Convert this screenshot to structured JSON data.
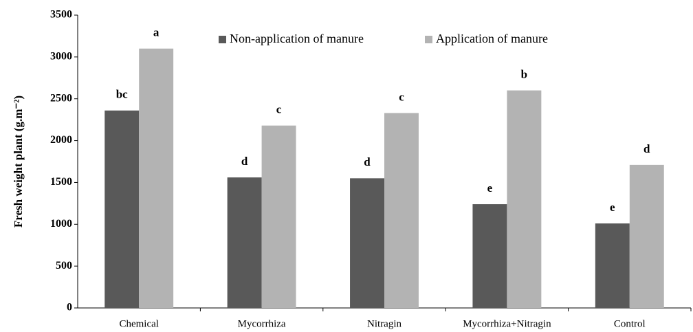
{
  "chart_data": {
    "type": "bar",
    "y_label": "Fresh weight plant   (g.m⁻²)",
    "categories": [
      "Chemical",
      "Mycorrhiza",
      "Nitragin",
      "Mycorrhiza+Nitragin",
      "Control"
    ],
    "series": [
      {
        "name": "Non-application of manure",
        "color": "#595959",
        "values": [
          2360,
          1560,
          1550,
          1240,
          1010
        ],
        "letters": [
          "bc",
          "d",
          "d",
          "e",
          "e"
        ]
      },
      {
        "name": "Application of manure",
        "color": "#b3b3b3",
        "values": [
          3100,
          2180,
          2330,
          2600,
          1710
        ],
        "letters": [
          "a",
          "c",
          "c",
          "b",
          "d"
        ]
      }
    ],
    "ylim": [
      0,
      3500
    ],
    "yticks": [
      0,
      500,
      1000,
      1500,
      2000,
      2500,
      3000,
      3500
    ],
    "grid": false,
    "legend": "top"
  }
}
